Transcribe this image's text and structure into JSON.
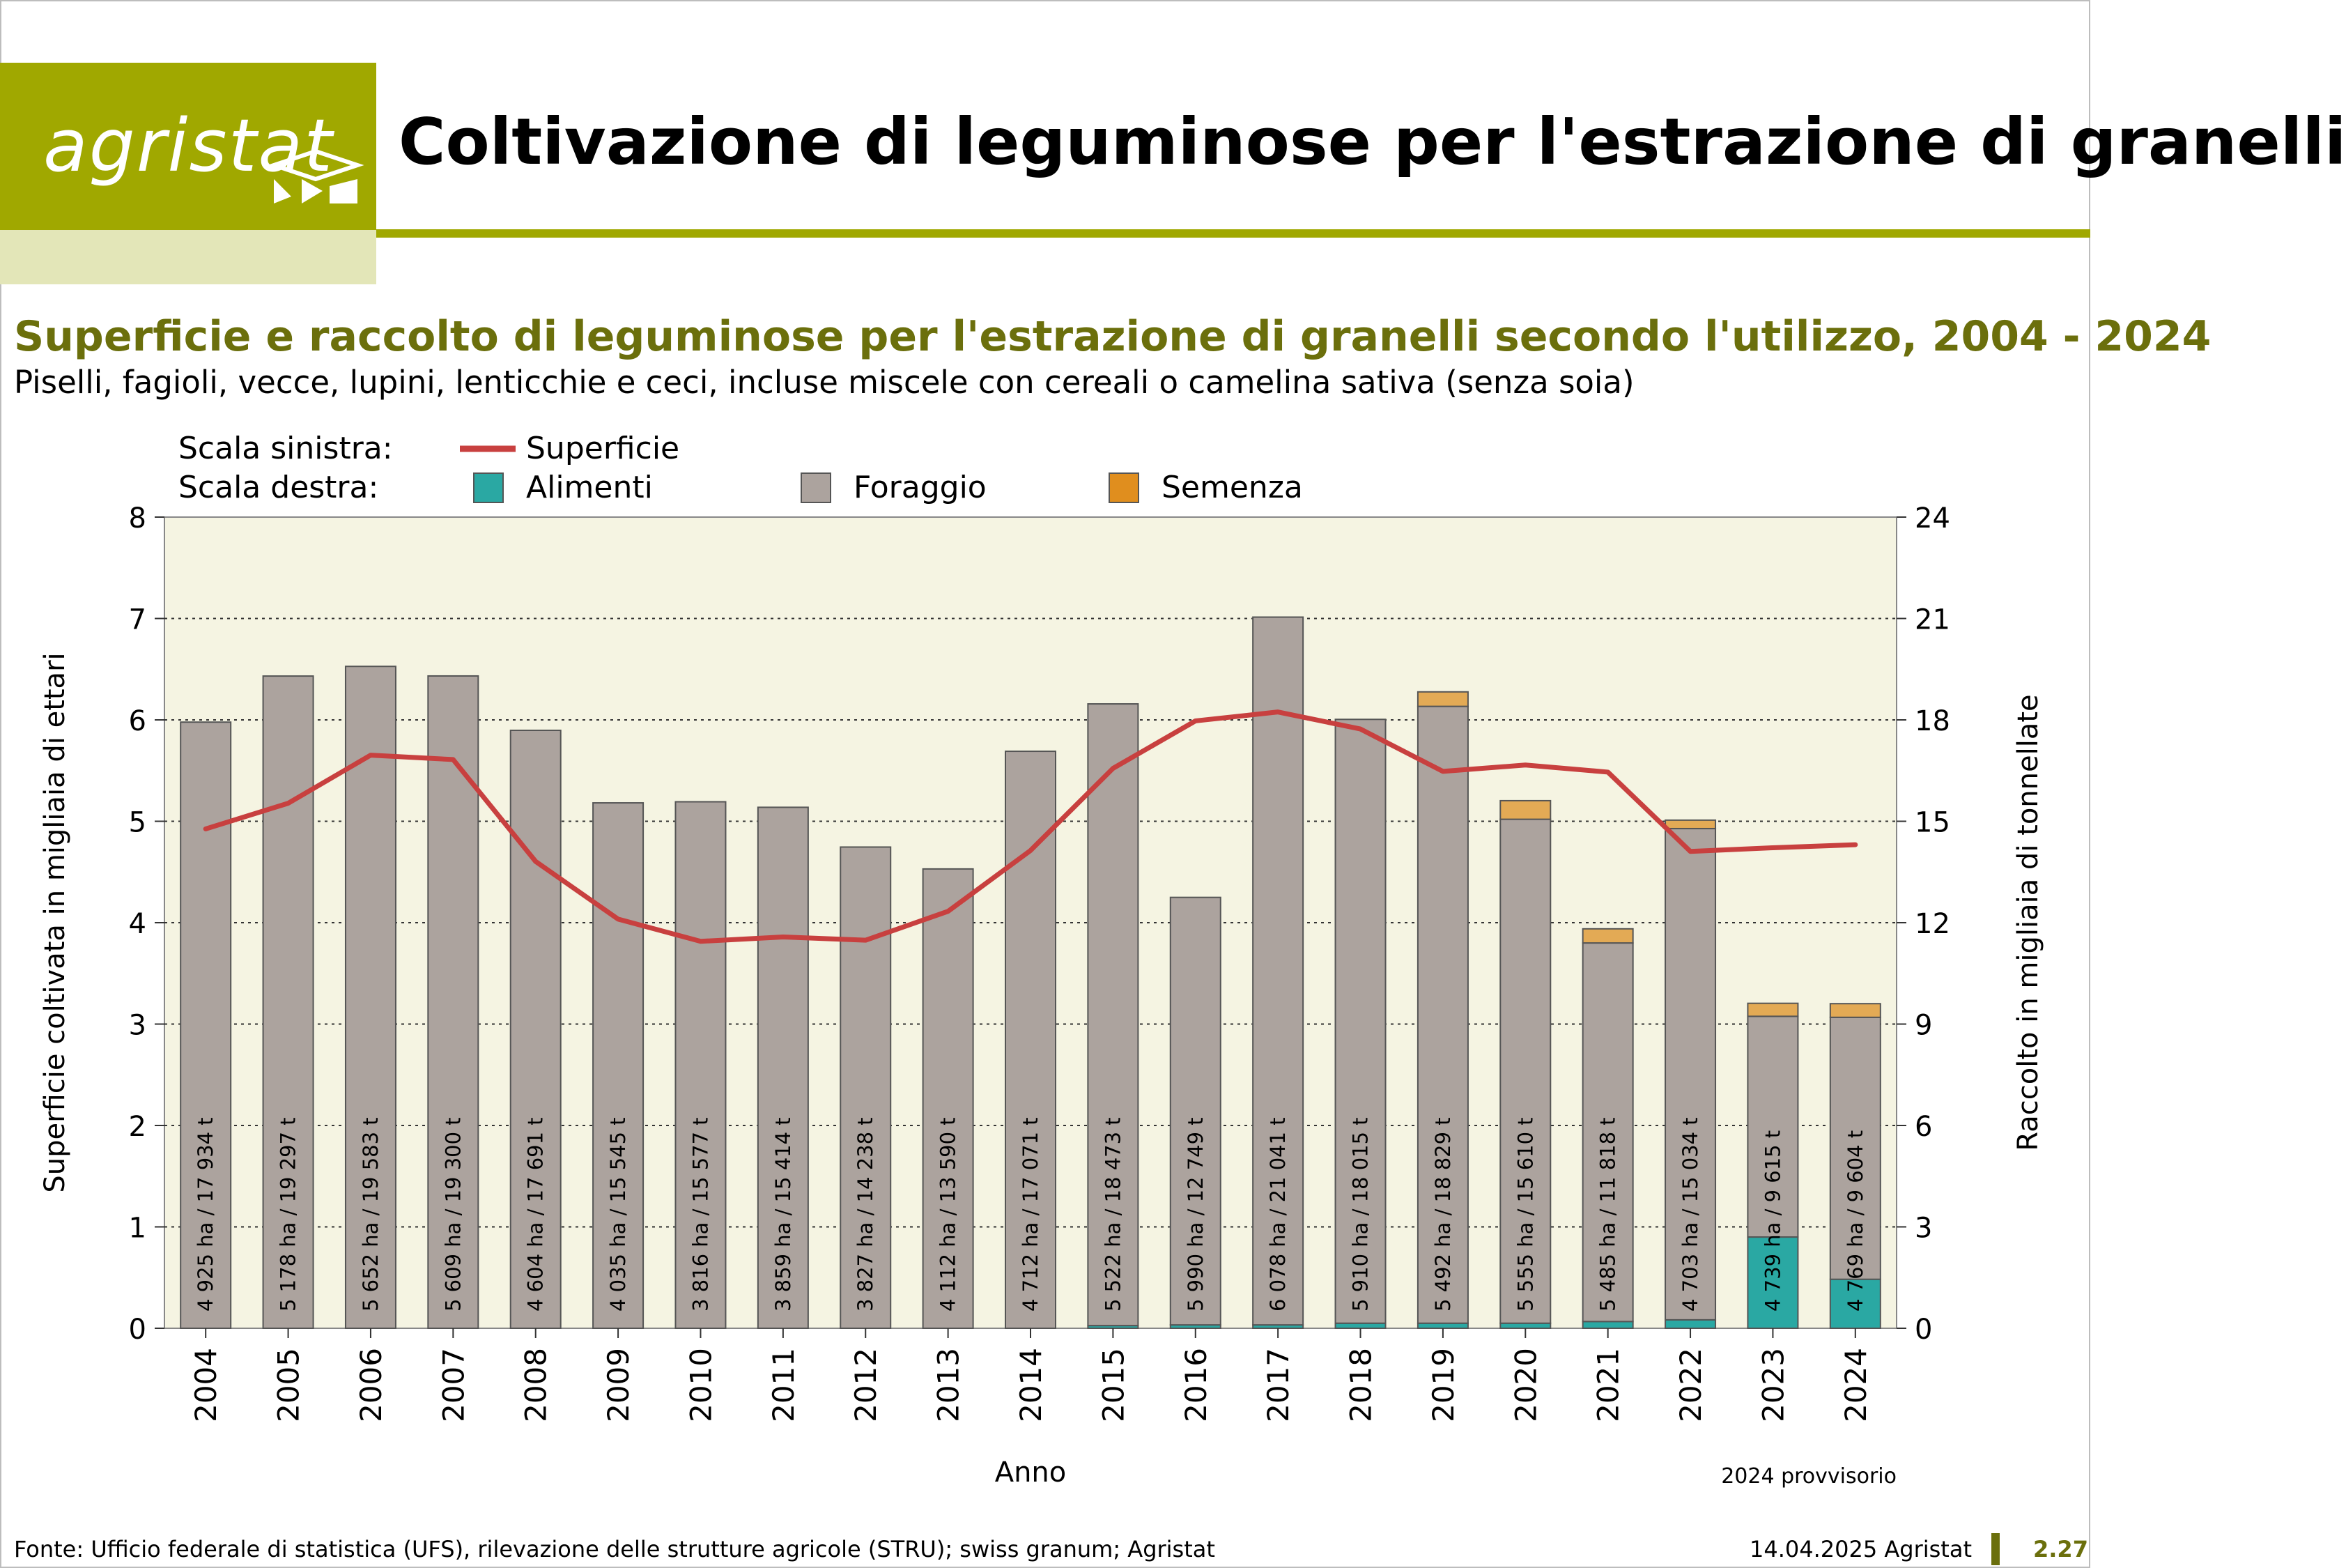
{
  "header": {
    "logo_text": "agristat",
    "title": "Coltivazione di leguminose per l'estrazione di granelli"
  },
  "subtitle": "Superficie e raccolto di leguminose per l'estrazione di granelli secondo l'utilizzo, 2004 - 2024",
  "subtitle2": "Piselli, fagioli, vecce, lupini, lenticchie e ceci, incluse miscele con cereali o camelina sativa (senza soia)",
  "legend": {
    "left_scale_label": "Scala sinistra:",
    "right_scale_label": "Scala destra:",
    "items": [
      "Superficie",
      "Alimenti",
      "Foraggio",
      "Semenza"
    ]
  },
  "footer": {
    "source": "Fonte: Ufficio federale di statistica (UFS), rilevazione delle strutture agricole (STRU); swiss granum; Agristat",
    "date": "14.04.2025 Agristat",
    "page": "2.27"
  },
  "chart_data": {
    "type": "bar",
    "xlabel": "Anno",
    "ylabel_left": "Superficie coltivata in migliaia di ettari",
    "ylabel_right": "Raccolto in migliaia di tonnellate",
    "ylim_left": [
      0,
      8
    ],
    "ylim_right": [
      0,
      24
    ],
    "yticks_left": [
      0,
      1,
      2,
      3,
      4,
      5,
      6,
      7,
      8
    ],
    "yticks_right": [
      0,
      3,
      6,
      9,
      12,
      15,
      18,
      21,
      24
    ],
    "note": "2024 provvisorio",
    "categories": [
      "2004",
      "2005",
      "2006",
      "2007",
      "2008",
      "2009",
      "2010",
      "2011",
      "2012",
      "2013",
      "2014",
      "2015",
      "2016",
      "2017",
      "2018",
      "2019",
      "2020",
      "2021",
      "2022",
      "2023",
      "2024"
    ],
    "series": [
      {
        "name": "Alimenti",
        "axis": "right",
        "color": "#2aa8a3",
        "values": [
          0,
          0,
          0,
          0,
          0,
          0,
          0,
          0,
          0,
          0,
          0,
          0.08,
          0.1,
          0.1,
          0.15,
          0.15,
          0.15,
          0.2,
          0.25,
          2.7,
          1.45
        ]
      },
      {
        "name": "Foraggio",
        "axis": "right",
        "color": "#aca39e",
        "values": [
          17.934,
          19.297,
          19.583,
          19.3,
          17.691,
          15.545,
          15.577,
          15.414,
          14.238,
          13.59,
          17.071,
          18.393,
          12.649,
          20.941,
          17.865,
          18.25,
          14.91,
          11.2,
          14.534,
          6.53,
          7.75
        ]
      },
      {
        "name": "Semenza",
        "axis": "right",
        "color": "#e3aa55",
        "values": [
          0,
          0,
          0,
          0,
          0,
          0,
          0,
          0,
          0,
          0,
          0,
          0,
          0,
          0,
          0,
          0.429,
          0.55,
          0.418,
          0.25,
          0.385,
          0.404
        ]
      },
      {
        "name": "Superficie",
        "axis": "left",
        "color": "#c8403f",
        "values": [
          4.925,
          5.178,
          5.652,
          5.609,
          4.604,
          4.035,
          3.816,
          3.859,
          3.827,
          4.112,
          4.712,
          5.522,
          5.99,
          6.078,
          5.91,
          5.492,
          5.555,
          5.485,
          4.703,
          4.739,
          4.769
        ]
      }
    ],
    "bar_labels": [
      "4 925 ha / 17 934 t",
      "5 178 ha / 19 297 t",
      "5 652 ha / 19 583 t",
      "5 609 ha / 19 300 t",
      "4 604 ha / 17 691 t",
      "4 035 ha / 15 545 t",
      "3 816 ha / 15 577 t",
      "3 859 ha / 15 414 t",
      "3 827 ha / 14 238 t",
      "4 112 ha / 13 590 t",
      "4 712 ha / 17 071 t",
      "5 522 ha / 18 473 t",
      "5 990 ha / 12 749 t",
      "6 078 ha / 21 041 t",
      "5 910 ha / 18 015 t",
      "5 492 ha / 18 829 t",
      "5 555 ha / 15 610 t",
      "5 485 ha / 11 818 t",
      "4 703 ha / 15 034 t",
      "4 739 ha / 9 615 t",
      "4 769 ha / 9 604 t"
    ],
    "colors": {
      "plot_background": "#f5f4e2",
      "accent": "#a0a800",
      "title_color": "#6b6f0c"
    }
  }
}
